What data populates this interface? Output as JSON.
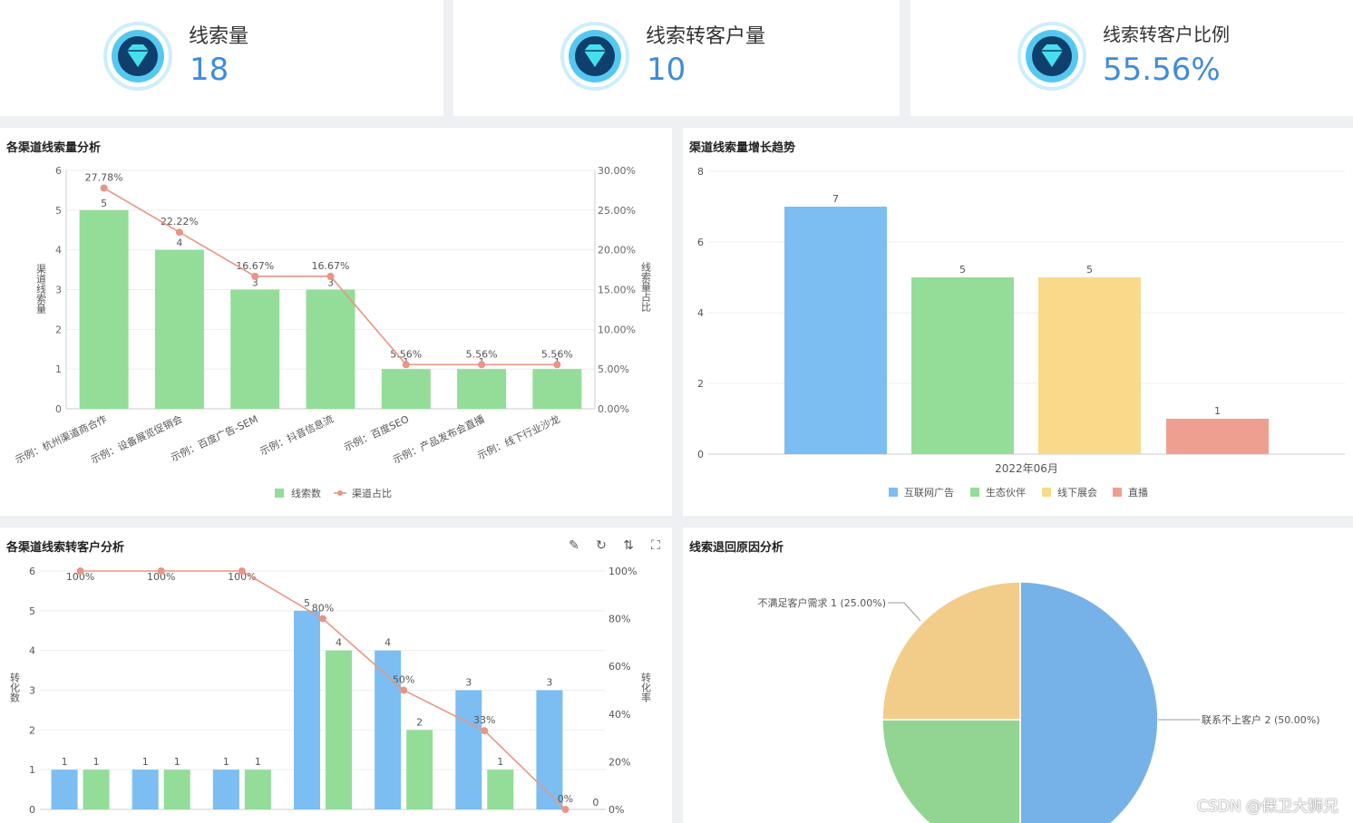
{
  "kpis": [
    {
      "title": "线索量",
      "value": "18"
    },
    {
      "title": "线索转客户量",
      "value": "10"
    },
    {
      "title": "线索转客户比例",
      "value": "55.56%"
    }
  ],
  "colors": {
    "green": "#93dd98",
    "blue": "#7cbdf2",
    "yellow": "#f9d98a",
    "red": "#ee9f90",
    "line": "#e99585",
    "kpi_blue": "#3f8bdc"
  },
  "watermark": "CSDN @保卫大狮兄",
  "chart_data": [
    {
      "id": "channel-leads",
      "type": "bar",
      "title": "各渠道线索量分析",
      "categories": [
        "示例：杭州渠道商合作",
        "示例：设备展览促销会",
        "示例：百度广告-SEM",
        "示例：抖音信息流",
        "示例：百度SEO",
        "示例：产品发布会直播",
        "示例：线下行业沙龙"
      ],
      "series": [
        {
          "name": "线索数",
          "type": "bar",
          "values": [
            5,
            4,
            3,
            3,
            1,
            1,
            1
          ],
          "labels": [
            "5",
            "4",
            "3",
            "3",
            "1",
            "1",
            "1"
          ]
        },
        {
          "name": "渠道占比",
          "type": "line",
          "values": [
            27.78,
            22.22,
            16.67,
            16.67,
            5.56,
            5.56,
            5.56
          ],
          "labels": [
            "27.78%",
            "22.22%",
            "16.67%",
            "16.67%",
            "5.56%",
            "5.56%",
            "5.56%"
          ]
        }
      ],
      "ylabel": "渠道线索量",
      "y2label": "线索量占比",
      "ylim": [
        0,
        6
      ],
      "y2lim": [
        0,
        30
      ],
      "yticks": [
        "0",
        "1",
        "2",
        "3",
        "4",
        "5",
        "6"
      ],
      "y2ticks": [
        "0.00%",
        "5.00%",
        "10.00%",
        "15.00%",
        "20.00%",
        "25.00%",
        "30.00%"
      ],
      "legend": "bottom"
    },
    {
      "id": "leads-trend",
      "type": "bar",
      "title": "渠道线索量增长趋势",
      "categories": [
        "2022年06月"
      ],
      "series": [
        {
          "name": "互联网广告",
          "values": [
            7
          ]
        },
        {
          "name": "生态伙伴",
          "values": [
            5
          ]
        },
        {
          "name": "线下展会",
          "values": [
            5
          ]
        },
        {
          "name": "直播",
          "values": [
            1
          ]
        }
      ],
      "ylim": [
        0,
        8
      ],
      "yticks": [
        "0",
        "2",
        "4",
        "6",
        "8"
      ],
      "legend": "bottom"
    },
    {
      "id": "channel-conversion",
      "type": "bar",
      "title": "各渠道线索转客户分析",
      "series": [
        {
          "type": "bar",
          "color": "blue",
          "values": [
            1,
            1,
            1,
            5,
            4,
            3,
            3
          ]
        },
        {
          "type": "bar",
          "color": "green",
          "values": [
            1,
            1,
            1,
            4,
            2,
            1,
            0
          ]
        },
        {
          "type": "line",
          "values": [
            100,
            100,
            100,
            80,
            50,
            33,
            0
          ],
          "labels": [
            "100%",
            "100%",
            "100%",
            "80%",
            "50%",
            "33%",
            "0%"
          ]
        }
      ],
      "ylabel": "转化数",
      "y2label": "转化率",
      "ylim": [
        0,
        6
      ],
      "y2lim": [
        0,
        100
      ],
      "yticks": [
        "0",
        "1",
        "2",
        "3",
        "4",
        "5",
        "6"
      ],
      "y2ticks": [
        "0%",
        "20%",
        "40%",
        "60%",
        "80%",
        "100%"
      ]
    },
    {
      "id": "lead-return-reasons",
      "type": "pie",
      "title": "线索退回原因分析",
      "slices": [
        {
          "label": "联系不上客户 2 (50.00%)",
          "value": 2,
          "color": "#76b2e8"
        },
        {
          "label": "",
          "value": 1,
          "color": "#92d592"
        },
        {
          "label": "不满足客户需求 1 (25.00%)",
          "value": 1,
          "color": "#f2cd8a"
        }
      ]
    }
  ]
}
